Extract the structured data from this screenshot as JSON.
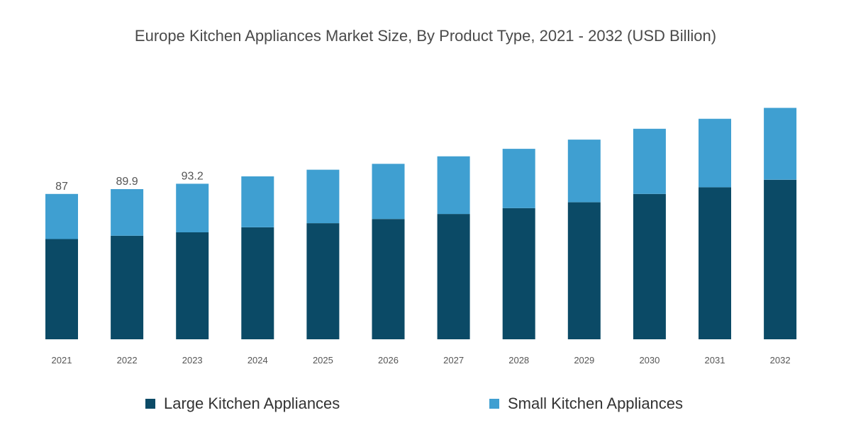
{
  "colors": {
    "large": "#0b4a66",
    "small": "#3f9fd1",
    "axis_text": "#555555",
    "label_text": "#555555"
  },
  "chart_data": {
    "type": "bar",
    "stacked": true,
    "title": "Europe Kitchen Appliances Market Size, By Product Type, 2021 - 2032 (USD Billion)",
    "categories": [
      "2021",
      "2022",
      "2023",
      "2024",
      "2025",
      "2026",
      "2027",
      "2028",
      "2029",
      "2030",
      "2031",
      "2032"
    ],
    "series": [
      {
        "name": "Large Kitchen Appliances",
        "values": [
          60,
          62,
          64,
          67,
          69.5,
          72,
          75,
          78.5,
          82,
          87,
          91,
          95.5
        ]
      },
      {
        "name": "Small Kitchen Appliances",
        "values": [
          27,
          27.9,
          29.1,
          30.5,
          32,
          33,
          34.5,
          35.5,
          37.5,
          39,
          41,
          43
        ]
      }
    ],
    "total_labels": [
      "87",
      "89.9",
      "93.2",
      "",
      "",
      "",
      "",
      "",
      "",
      "",
      "",
      ""
    ],
    "ylim": [
      0,
      145
    ],
    "legend_position": "bottom",
    "grid": false
  }
}
